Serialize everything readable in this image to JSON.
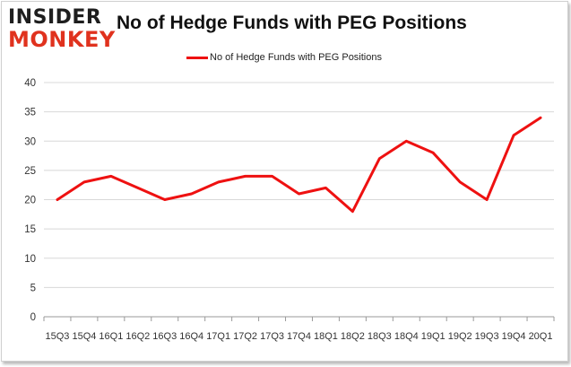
{
  "logo": {
    "line1": "INSIDER",
    "line2": "MONKEY"
  },
  "colors": {
    "series": "#ee1111",
    "grid": "#d8d8d8",
    "logo_accent": "#e0321e"
  },
  "chart_data": {
    "type": "line",
    "title": "No of Hedge Funds with PEG Positions",
    "xlabel": "",
    "ylabel": "",
    "ylim": [
      0,
      40
    ],
    "yticks": [
      0,
      5,
      10,
      15,
      20,
      25,
      30,
      35,
      40
    ],
    "grid": true,
    "legend_position": "top",
    "categories": [
      "15Q3",
      "15Q4",
      "16Q1",
      "16Q2",
      "16Q3",
      "16Q4",
      "17Q1",
      "17Q2",
      "17Q3",
      "17Q4",
      "18Q1",
      "18Q2",
      "18Q3",
      "18Q4",
      "19Q1",
      "19Q2",
      "19Q3",
      "19Q4",
      "20Q1"
    ],
    "series": [
      {
        "name": "No of Hedge Funds with PEG Positions",
        "values": [
          20,
          23,
          24,
          22,
          20,
          21,
          23,
          24,
          24,
          21,
          22,
          18,
          27,
          30,
          28,
          23,
          20,
          31,
          34
        ]
      }
    ]
  }
}
